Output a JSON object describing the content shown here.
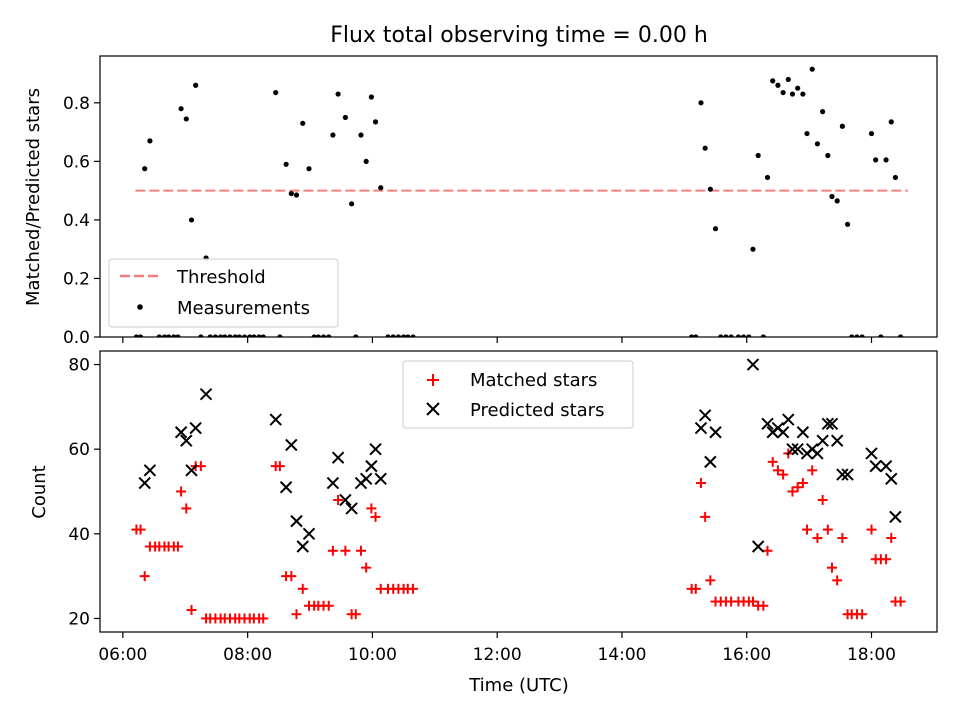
{
  "figure": {
    "title": "Flux total observing time = 0.00 h"
  },
  "chart_data": [
    {
      "type": "scatter",
      "panel": "top",
      "ylabel": "Matched/Predicted stars",
      "xlabel": "",
      "xlim": [
        "05:38",
        "19:03"
      ],
      "ylim": [
        0,
        0.96
      ],
      "x_ticks": [
        "06:00",
        "08:00",
        "10:00",
        "12:00",
        "14:00",
        "16:00",
        "18:00"
      ],
      "y_ticks": [
        "0.0",
        "0.2",
        "0.4",
        "0.6",
        "0.8"
      ],
      "grid": false,
      "legend_position": "lower-left",
      "threshold": {
        "name": "Threshold",
        "value": 0.5,
        "x_start": "06:12",
        "x_end": "18:35",
        "color": "#f08080",
        "style": "dashed"
      },
      "series": [
        {
          "name": "Measurements",
          "color": "#000000",
          "marker": "dot",
          "points": [
            [
              "06:13",
              0.0
            ],
            [
              "06:17",
              0.0
            ],
            [
              "06:21",
              0.575
            ],
            [
              "06:26",
              0.67
            ],
            [
              "06:35",
              0.0
            ],
            [
              "06:40",
              0.0
            ],
            [
              "06:44",
              0.0
            ],
            [
              "06:49",
              0.0
            ],
            [
              "06:53",
              0.0
            ],
            [
              "06:56",
              0.78
            ],
            [
              "07:01",
              0.745
            ],
            [
              "07:06",
              0.4
            ],
            [
              "07:10",
              0.86
            ],
            [
              "07:15",
              0.0
            ],
            [
              "07:20",
              0.27
            ],
            [
              "07:24",
              0.0
            ],
            [
              "07:29",
              0.0
            ],
            [
              "07:34",
              0.0
            ],
            [
              "07:38",
              0.0
            ],
            [
              "07:43",
              0.0
            ],
            [
              "07:48",
              0.0
            ],
            [
              "07:52",
              0.0
            ],
            [
              "07:57",
              0.0
            ],
            [
              "08:02",
              0.0
            ],
            [
              "08:06",
              0.0
            ],
            [
              "08:11",
              0.0
            ],
            [
              "08:15",
              0.0
            ],
            [
              "08:27",
              0.835
            ],
            [
              "08:31",
              0.0
            ],
            [
              "08:37",
              0.59
            ],
            [
              "08:42",
              0.49
            ],
            [
              "08:47",
              0.485
            ],
            [
              "08:53",
              0.73
            ],
            [
              "08:59",
              0.575
            ],
            [
              "09:04",
              0.0
            ],
            [
              "09:08",
              0.0
            ],
            [
              "09:13",
              0.0
            ],
            [
              "09:18",
              0.0
            ],
            [
              "09:22",
              0.69
            ],
            [
              "09:27",
              0.83
            ],
            [
              "09:34",
              0.75
            ],
            [
              "09:40",
              0.455
            ],
            [
              "09:44",
              0.0
            ],
            [
              "09:49",
              0.69
            ],
            [
              "09:54",
              0.6
            ],
            [
              "09:59",
              0.82
            ],
            [
              "10:03",
              0.735
            ],
            [
              "10:08",
              0.51
            ],
            [
              "10:15",
              0.0
            ],
            [
              "10:20",
              0.0
            ],
            [
              "10:25",
              0.0
            ],
            [
              "10:30",
              0.0
            ],
            [
              "10:34",
              0.0
            ],
            [
              "10:39",
              0.0
            ],
            [
              "15:07",
              0.0
            ],
            [
              "15:11",
              0.0
            ],
            [
              "15:16",
              0.8
            ],
            [
              "15:20",
              0.645
            ],
            [
              "15:25",
              0.505
            ],
            [
              "15:30",
              0.37
            ],
            [
              "15:35",
              0.0
            ],
            [
              "15:40",
              0.0
            ],
            [
              "15:45",
              0.0
            ],
            [
              "15:52",
              0.0
            ],
            [
              "15:57",
              0.0
            ],
            [
              "16:02",
              0.0
            ],
            [
              "16:06",
              0.3
            ],
            [
              "16:11",
              0.62
            ],
            [
              "16:16",
              0.0
            ],
            [
              "16:20",
              0.545
            ],
            [
              "16:25",
              0.875
            ],
            [
              "16:30",
              0.86
            ],
            [
              "16:35",
              0.835
            ],
            [
              "16:40",
              0.88
            ],
            [
              "16:44",
              0.83
            ],
            [
              "16:49",
              0.85
            ],
            [
              "16:54",
              0.83
            ],
            [
              "16:58",
              0.695
            ],
            [
              "17:03",
              0.915
            ],
            [
              "17:08",
              0.66
            ],
            [
              "17:13",
              0.77
            ],
            [
              "17:18",
              0.62
            ],
            [
              "17:22",
              0.48
            ],
            [
              "17:27",
              0.465
            ],
            [
              "17:32",
              0.72
            ],
            [
              "17:37",
              0.385
            ],
            [
              "17:41",
              0.0
            ],
            [
              "17:46",
              0.0
            ],
            [
              "17:51",
              0.0
            ],
            [
              "18:00",
              0.695
            ],
            [
              "18:04",
              0.605
            ],
            [
              "18:09",
              0.0
            ],
            [
              "18:14",
              0.605
            ],
            [
              "18:19",
              0.735
            ],
            [
              "18:23",
              0.545
            ],
            [
              "18:28",
              0.0
            ]
          ]
        }
      ]
    },
    {
      "type": "scatter",
      "panel": "bottom",
      "ylabel": "Count",
      "xlabel": "Time (UTC)",
      "xlim": [
        "05:38",
        "19:03"
      ],
      "ylim": [
        16.8,
        83.2
      ],
      "x_ticks": [
        "06:00",
        "08:00",
        "10:00",
        "12:00",
        "14:00",
        "16:00",
        "18:00"
      ],
      "y_ticks": [
        "20",
        "40",
        "60",
        "80"
      ],
      "grid": false,
      "legend_position": "upper-center",
      "series": [
        {
          "name": "Matched stars",
          "color": "#ff0000",
          "marker": "plus",
          "points": [
            [
              "06:13",
              41
            ],
            [
              "06:17",
              41
            ],
            [
              "06:21",
              30
            ],
            [
              "06:26",
              37
            ],
            [
              "06:31",
              37
            ],
            [
              "06:35",
              37
            ],
            [
              "06:40",
              37
            ],
            [
              "06:44",
              37
            ],
            [
              "06:49",
              37
            ],
            [
              "06:53",
              37
            ],
            [
              "06:56",
              50
            ],
            [
              "07:01",
              46
            ],
            [
              "07:06",
              22
            ],
            [
              "07:10",
              56
            ],
            [
              "07:15",
              56
            ],
            [
              "07:20",
              20
            ],
            [
              "07:24",
              20
            ],
            [
              "07:29",
              20
            ],
            [
              "07:34",
              20
            ],
            [
              "07:38",
              20
            ],
            [
              "07:43",
              20
            ],
            [
              "07:48",
              20
            ],
            [
              "07:52",
              20
            ],
            [
              "07:57",
              20
            ],
            [
              "08:02",
              20
            ],
            [
              "08:06",
              20
            ],
            [
              "08:11",
              20
            ],
            [
              "08:15",
              20
            ],
            [
              "08:27",
              56
            ],
            [
              "08:31",
              56
            ],
            [
              "08:37",
              30
            ],
            [
              "08:42",
              30
            ],
            [
              "08:47",
              21
            ],
            [
              "08:53",
              27
            ],
            [
              "08:59",
              23
            ],
            [
              "09:04",
              23
            ],
            [
              "09:08",
              23
            ],
            [
              "09:13",
              23
            ],
            [
              "09:18",
              23
            ],
            [
              "09:22",
              36
            ],
            [
              "09:27",
              48
            ],
            [
              "09:34",
              36
            ],
            [
              "09:40",
              21
            ],
            [
              "09:44",
              21
            ],
            [
              "09:49",
              36
            ],
            [
              "09:54",
              32
            ],
            [
              "09:59",
              46
            ],
            [
              "10:03",
              44
            ],
            [
              "10:08",
              27
            ],
            [
              "10:15",
              27
            ],
            [
              "10:20",
              27
            ],
            [
              "10:25",
              27
            ],
            [
              "10:30",
              27
            ],
            [
              "10:34",
              27
            ],
            [
              "10:39",
              27
            ],
            [
              "15:07",
              27
            ],
            [
              "15:11",
              27
            ],
            [
              "15:16",
              52
            ],
            [
              "15:20",
              44
            ],
            [
              "15:25",
              29
            ],
            [
              "15:30",
              24
            ],
            [
              "15:35",
              24
            ],
            [
              "15:40",
              24
            ],
            [
              "15:45",
              24
            ],
            [
              "15:52",
              24
            ],
            [
              "15:57",
              24
            ],
            [
              "16:02",
              24
            ],
            [
              "16:06",
              24
            ],
            [
              "16:11",
              23
            ],
            [
              "16:16",
              23
            ],
            [
              "16:20",
              36
            ],
            [
              "16:25",
              57
            ],
            [
              "16:30",
              55
            ],
            [
              "16:35",
              54
            ],
            [
              "16:40",
              59
            ],
            [
              "16:44",
              50
            ],
            [
              "16:49",
              51
            ],
            [
              "16:54",
              52
            ],
            [
              "16:58",
              41
            ],
            [
              "17:03",
              55
            ],
            [
              "17:08",
              39
            ],
            [
              "17:13",
              48
            ],
            [
              "17:18",
              41
            ],
            [
              "17:22",
              32
            ],
            [
              "17:27",
              29
            ],
            [
              "17:32",
              39
            ],
            [
              "17:37",
              21
            ],
            [
              "17:41",
              21
            ],
            [
              "17:46",
              21
            ],
            [
              "17:51",
              21
            ],
            [
              "18:00",
              41
            ],
            [
              "18:04",
              34
            ],
            [
              "18:09",
              34
            ],
            [
              "18:14",
              34
            ],
            [
              "18:19",
              39
            ],
            [
              "18:23",
              24
            ],
            [
              "18:28",
              24
            ]
          ]
        },
        {
          "name": "Predicted stars",
          "color": "#000000",
          "marker": "x",
          "points": [
            [
              "06:21",
              52
            ],
            [
              "06:26",
              55
            ],
            [
              "06:56",
              64
            ],
            [
              "07:01",
              62
            ],
            [
              "07:06",
              55
            ],
            [
              "07:10",
              65
            ],
            [
              "07:20",
              73
            ],
            [
              "08:27",
              67
            ],
            [
              "08:37",
              51
            ],
            [
              "08:42",
              61
            ],
            [
              "08:47",
              43
            ],
            [
              "08:53",
              37
            ],
            [
              "08:59",
              40
            ],
            [
              "09:22",
              52
            ],
            [
              "09:27",
              58
            ],
            [
              "09:34",
              48
            ],
            [
              "09:40",
              46
            ],
            [
              "09:49",
              52
            ],
            [
              "09:54",
              53
            ],
            [
              "09:59",
              56
            ],
            [
              "10:03",
              60
            ],
            [
              "10:08",
              53
            ],
            [
              "15:16",
              65
            ],
            [
              "15:20",
              68
            ],
            [
              "15:25",
              57
            ],
            [
              "15:30",
              64
            ],
            [
              "16:06",
              80
            ],
            [
              "16:11",
              37
            ],
            [
              "16:20",
              66
            ],
            [
              "16:25",
              64
            ],
            [
              "16:30",
              65
            ],
            [
              "16:35",
              64
            ],
            [
              "16:40",
              67
            ],
            [
              "16:44",
              60
            ],
            [
              "16:49",
              60
            ],
            [
              "16:54",
              64
            ],
            [
              "16:58",
              59
            ],
            [
              "17:03",
              60
            ],
            [
              "17:08",
              59
            ],
            [
              "17:13",
              62
            ],
            [
              "17:18",
              66
            ],
            [
              "17:22",
              66
            ],
            [
              "17:27",
              62
            ],
            [
              "17:32",
              54
            ],
            [
              "17:37",
              54
            ],
            [
              "18:00",
              59
            ],
            [
              "18:04",
              56
            ],
            [
              "18:14",
              56
            ],
            [
              "18:19",
              53
            ],
            [
              "18:23",
              44
            ]
          ]
        }
      ]
    }
  ]
}
